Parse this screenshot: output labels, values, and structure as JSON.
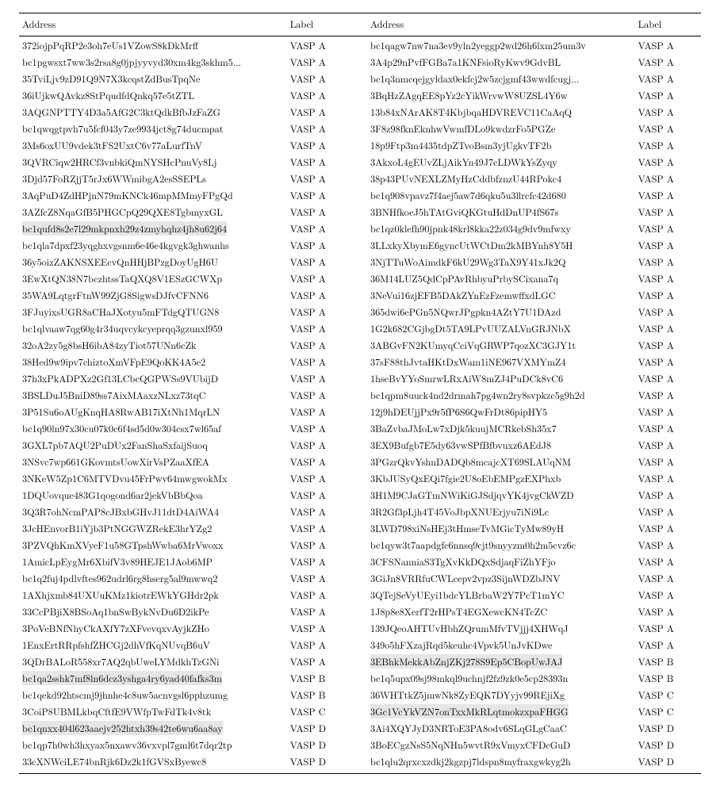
{
  "columns": {
    "address": "Address",
    "label": "Label"
  },
  "highlight_bg": "#e6e6e6",
  "font_size_pt": 9,
  "labels": {
    "A": "VASP A",
    "B": "VASP B",
    "C": "VASP C",
    "D": "VASP D"
  },
  "left": [
    {
      "a": "372iojpPqRP2e3oh7eUs1VZowS8kDkMrff",
      "l": "A"
    },
    {
      "a": "bc1pgwsxt7ww3s2rsa8g0jpjyyvyd30xm4kg3skhm5...",
      "l": "A"
    },
    {
      "a": "35TviLjv9zD91Q9N7X3kcqstZdBusTpqNe",
      "l": "A"
    },
    {
      "a": "36iUjkwQAvkz8StPqudfdQnkq57e5tZTL",
      "l": "A"
    },
    {
      "a": "3AQGNPTTY4D3a5AfG2C3ktQdkBfbJzFaZG",
      "l": "A"
    },
    {
      "a": "bc1qwqgtpvh7u5fcf043y7ze9934jct8g74ducmpat",
      "l": "A"
    },
    {
      "a": "3Ms6oxUU9vdek3tFS2UxtC6v77aLurfTnV",
      "l": "A"
    },
    {
      "a": "3QVRCiqw2HRCf3vnbkiQmNYSHcPnuVy8Lj",
      "l": "A"
    },
    {
      "a": "3Djd57FoRZjjT5rJx6WWmibgA2esSSEPLs",
      "l": "A"
    },
    {
      "a": "3AqPuD4ZdHPjnN79mKNCk46mpMMmyFPgQd",
      "l": "A"
    },
    {
      "a": "3AZfcZ8NqaGfB5PHGCpQ29QXE8TgbmyxGL",
      "l": "A"
    },
    {
      "a": "bc1qufd8s2e7l29mkpnxh29z4zmyhqhz4jh8u62j64",
      "l": "A",
      "hl": true
    },
    {
      "a": "bc1qla7dpxf23yqghxvgsnm6e46e4kgvgk3ghwanhs",
      "l": "A"
    },
    {
      "a": "36y5oizZAKNSXEEcvQnHHjBPzgDoyUgH6U",
      "l": "A"
    },
    {
      "a": "3EwXtQN38N7bczhtssTaQXQ8V1ESzGCWXp",
      "l": "A"
    },
    {
      "a": "35WA9LqtgrFtnW99ZjG8SigwsDJfvCFNN6",
      "l": "A"
    },
    {
      "a": "3FJuyixsUGR8aCHaJXotyu5mFTdgQTUGN8",
      "l": "A"
    },
    {
      "a": "bc1qlvaaw7qg60g4r34uqvcykcyeprqq3gzunxl959",
      "l": "A"
    },
    {
      "a": "32oA2zy5g8bsH6ibA84zyTiot57UNn6cZk",
      "l": "A"
    },
    {
      "a": "38Hed9w9ipv7chiztoXmVFpE9QoKK4A5e2",
      "l": "A"
    },
    {
      "a": "37h3xPkADPXz2Gf13LCbcQGPWSs9VUbijD",
      "l": "A"
    },
    {
      "a": "3BSLDuJ5BniD89ss7AixMAaxzNLxz73tqC",
      "l": "A"
    },
    {
      "a": "3P51Su6oAUgKnqHA8RwAB17iXtNh1MqrLN",
      "l": "A"
    },
    {
      "a": "bc1q90ln97x30cu07k0c6f4sd5d0w304csx7wl65af",
      "l": "A"
    },
    {
      "a": "3GXL7pb7AQU2PuDUx2FanShaSxfaijSuoq",
      "l": "A"
    },
    {
      "a": "3NSvc7wp661GKovmtsUowXirVsPZaaXfEA",
      "l": "A"
    },
    {
      "a": "3NKeW5Zp1C6MTVDvu45FrPwv64mwgwokMx",
      "l": "A"
    },
    {
      "a": "1DQUovque483G1qogond6ar2jekVbBbQoa",
      "l": "A"
    },
    {
      "a": "3Q3R7ohNcmPAP8cJBxbGHvJ11dtD4AiWA4",
      "l": "A"
    },
    {
      "a": "3JcHEnvorB1iYjb3PtNGGWZRekE3hrYZg2",
      "l": "A"
    },
    {
      "a": "3PZVQhKmXVyeF1u58GTpshWwba6MrVwoxx",
      "l": "A"
    },
    {
      "a": "1AmicLpEygMr6XbifV3v89HEJE1JAob6MP",
      "l": "A"
    },
    {
      "a": "bc1q2fuj4pdlvftes962udrl6rg8hserg5al9mwwq2",
      "l": "A"
    },
    {
      "a": "1AXhjxmb84UXUuKMz1kiotrEWkYGHdr2pk",
      "l": "A"
    },
    {
      "a": "33CcPBjiX8BSoAq1bnSwBykNvDu6D2ikPe",
      "l": "A"
    },
    {
      "a": "3PoVeBNfNhyCkAXfY7zXFvevqxvAyjkZHo",
      "l": "A"
    },
    {
      "a": "1EnxErtRRpfshfZHCGj2dhVfKqNUvqB6uV",
      "l": "A"
    },
    {
      "a": "3QDrBALoR558xr7AQ2qbUweLYMdkhTzGNi",
      "l": "A"
    },
    {
      "a": "bc1qa2sshk7mf8ln6dcz3yshga4ry6yad40fafks3m",
      "l": "B",
      "hl": true
    },
    {
      "a": "bc1qekd92htscmj9jhnhe4c8uw5acnvgsl6pphzumg",
      "l": "B"
    },
    {
      "a": "3CoiP8UBMLkbqCftfE9VWfpTwFdTk4v8tk",
      "l": "C"
    },
    {
      "a": "bc1qnxx404l623aaejv252htxh39s42te6wu6aa8ay",
      "l": "D",
      "hl": true
    },
    {
      "a": "bc1qp7h0wh3hxyax5nxawv36vxvpl7gml6t7dqr2tp",
      "l": "D"
    },
    {
      "a": "33cXNWciLE74bnRjk6Dz2k1fGVSxByewc8",
      "l": "D"
    }
  ],
  "right": [
    {
      "a": "bc1qagw7nw7na3ev9yln2yeggp2wd26h6lxm25um3v",
      "l": "A"
    },
    {
      "a": "3A4p29nPvfFGBa7a1KNFsioRyKwv9GdvBL",
      "l": "A"
    },
    {
      "a": "bc1q3nmcqejgyldax0ekfcj2w5zcjgmf43wwdfcugj...",
      "l": "A"
    },
    {
      "a": "3BqHzZAgqEE8pYz2cYikWrvwW8UZSL4Y6w",
      "l": "A"
    },
    {
      "a": "13b84xNArAK8T4KbjbqaHDVREVC11CaAqQ",
      "l": "A"
    },
    {
      "a": "3F8z98fknEknhwVwmfDLo9kwdzrFo5PGZe",
      "l": "A"
    },
    {
      "a": "18p9Ftp3m4435tdpZTvoBsm3yjUgkvTF2b",
      "l": "A"
    },
    {
      "a": "3AkxoL4gEUvZLjAikYn49J7cLDWkYsZyqy",
      "l": "A"
    },
    {
      "a": "38p43PUvNEXLZMyHzCddbfznzU44RPokc4",
      "l": "A"
    },
    {
      "a": "bc1q908vpavz7f4aej5aw7d6qku5u3llrcfc42d680",
      "l": "A"
    },
    {
      "a": "3BNHfkoeJ5hTAtGviQKGtuHdDnUP4fS67s",
      "l": "A"
    },
    {
      "a": "bc1qz0klefh90jpnk48krl8kka22z034g9dv9mfwxy",
      "l": "A"
    },
    {
      "a": "3LLxkyXbymE6gyncUtWCtDm2kMBYnh8Y5H",
      "l": "A"
    },
    {
      "a": "3NjTTuWoAimdkF6kU29Wg3TaX9Y41xJk2Q",
      "l": "A"
    },
    {
      "a": "36M14LUZ5QdCpPAvRhbyuPrbySCixana7q",
      "l": "A"
    },
    {
      "a": "3NeVui16zjEFB5DAkZYnEzFzemwffxdLGC",
      "l": "A"
    },
    {
      "a": "365dwi6ePGn5NQwrJPgpkn4AZtY7U1DAzd",
      "l": "A"
    },
    {
      "a": "1G2k682CGjbgDt5TA9LPvUUZALVnGRJNbX",
      "l": "A"
    },
    {
      "a": "3ABGvFN2KUmyqCciVqGRWP7qozXC3GJY1t",
      "l": "A"
    },
    {
      "a": "37sF88thJvtaHKtDxWam1iNE967VXMYmZ4",
      "l": "A"
    },
    {
      "a": "1hseBvYYoSmrwLRxAiW8mZJ4PuDCk8vC6",
      "l": "A"
    },
    {
      "a": "bc1qpm8uuck4nd2drmah7pg4wn2ry8svpkzc5g9h2d",
      "l": "A"
    },
    {
      "a": "12j9hDEUjjPx9r5fP6S6QwFrDt86pipHY5",
      "l": "A"
    },
    {
      "a": "3BaZvbaJMoLw7xDjk5kuujMCRkebSh35x7",
      "l": "A"
    },
    {
      "a": "3EX9Bufgb7E5dy63vwSPfBfbvuxz6AEdJ8",
      "l": "A"
    },
    {
      "a": "3PGzrQkvYshnDADQb8mcajcXT69SLAUqNM",
      "l": "A"
    },
    {
      "a": "3KbJUSyQxEQi7fgie2U8oEbEMPgzEXPhxb",
      "l": "A"
    },
    {
      "a": "3H1M9CJaGTmNWiKiGJSdjqvYK4jvgCkWZD",
      "l": "A"
    },
    {
      "a": "3R2Gf3pLjh4T45VoJbpXNUErjyu7iNi9Lc",
      "l": "A"
    },
    {
      "a": "3LWD798xiNsHEj3tHmseTvMGicTyMw89yH",
      "l": "A"
    },
    {
      "a": "bc1qyw3t7aapdgfc6nnsq9cjt9snyyzm0h2m5cvz6c",
      "l": "A"
    },
    {
      "a": "3CFSNanniaS3TgXvKkDQxSdjaqFiZhYFjo",
      "l": "A"
    },
    {
      "a": "3GiJn8VRRfuCWLcepv2vpz3SijnWDZbJNV",
      "l": "A"
    },
    {
      "a": "3QTejSeVyUEyi1bdcYLBrbaW2Y7PcT1mYC",
      "l": "A"
    },
    {
      "a": "1J8p8e8XerfT2rHPsT4EGXewcKN4TcZC",
      "l": "A"
    },
    {
      "a": "139JQeoAHTUvHbhZQrumMfvTVjjj4XHWqJ",
      "l": "A"
    },
    {
      "a": "349o5hFXzajRqd5keuhc4Vpvk5UnJvKDwe",
      "l": "A"
    },
    {
      "a": "3EBhkMekkAbZnjZKj278S9Ep5CBopUwJAJ",
      "l": "B",
      "hl": true
    },
    {
      "a": "bc1q5upx09sj98mkql9uchnjf2fz9zk0e5cp28393n",
      "l": "B"
    },
    {
      "a": "36WHTtkZ5jmwNk8ZyEQK7DYyjv99REjiXg",
      "l": "C"
    },
    {
      "a": "3Gc1VcYkVZN7onTxxMkRLqtmokzxpaFHGG",
      "l": "C",
      "hl": true
    },
    {
      "a": "3Ai4XQYJyD3NRToE3PA8odv6SLqGLgCaaC",
      "l": "D"
    },
    {
      "a": "3BoECgzNsS5NqNHn5wvtR9xVmyxCFDcGuD",
      "l": "D"
    },
    {
      "a": "bc1qlu2qrxcxzdkj2kgzpj7ldspn8myfraxgwkyg2h",
      "l": "D"
    }
  ]
}
